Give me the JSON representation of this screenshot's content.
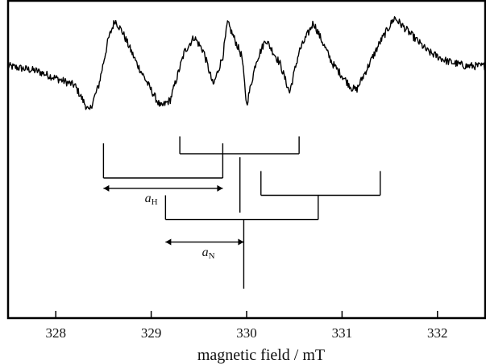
{
  "chart_data": {
    "type": "line",
    "title": "",
    "xlabel": "magnetic field / mT",
    "ylabel": "",
    "xlim": [
      327.5,
      332.5
    ],
    "xticks": [
      328,
      329,
      330,
      331,
      332
    ],
    "xtick_labels": [
      "328",
      "329",
      "330",
      "331",
      "332"
    ],
    "grid": false,
    "legend": "none",
    "series": [
      {
        "style": "noisy first-derivative EPR spectrum",
        "x": [
          327.5,
          327.8,
          328.0,
          328.2,
          328.35,
          328.45,
          328.55,
          328.62,
          328.7,
          328.85,
          329.0,
          329.1,
          329.2,
          329.35,
          329.45,
          329.55,
          329.65,
          329.75,
          329.8,
          329.95,
          330.0,
          330.1,
          330.2,
          330.35,
          330.45,
          330.55,
          330.7,
          330.9,
          331.1,
          331.15,
          331.25,
          331.4,
          331.55,
          331.7,
          331.9,
          332.1,
          332.3,
          332.5
        ],
        "y": [
          0.0,
          -0.1,
          -0.25,
          -0.4,
          -0.95,
          -0.4,
          0.55,
          0.95,
          0.7,
          0.05,
          -0.5,
          -0.85,
          -0.7,
          0.3,
          0.6,
          0.3,
          -0.4,
          0.2,
          0.9,
          0.2,
          -0.8,
          0.1,
          0.55,
          0.05,
          -0.55,
          0.3,
          0.9,
          0.05,
          -0.45,
          -0.5,
          -0.1,
          0.5,
          1.0,
          0.7,
          0.3,
          0.1,
          0.0,
          0.0
        ]
      }
    ],
    "stick_diagram": {
      "note": "hyperfine splitting pattern drawn below the spectrum",
      "segments": [
        {
          "x1": 328.5,
          "x2": 328.5,
          "level1": 1.0,
          "level2": 2.0
        },
        {
          "x1": 329.75,
          "x2": 329.75,
          "level1": 1.0,
          "level2": 2.0
        },
        {
          "x1": 328.5,
          "x2": 329.75,
          "level1": 2.0,
          "level2": 2.0
        },
        {
          "x1": 329.3,
          "x2": 329.3,
          "level1": 0.8,
          "level2": 1.3
        },
        {
          "x1": 330.55,
          "x2": 330.55,
          "level1": 0.8,
          "level2": 1.3
        },
        {
          "x1": 329.3,
          "x2": 330.55,
          "level1": 1.3,
          "level2": 1.3
        },
        {
          "x1": 330.15,
          "x2": 330.15,
          "level1": 1.8,
          "level2": 2.5
        },
        {
          "x1": 331.4,
          "x2": 331.4,
          "level1": 1.8,
          "level2": 2.5
        },
        {
          "x1": 330.15,
          "x2": 331.4,
          "level1": 2.5,
          "level2": 2.5
        },
        {
          "x1": 329.93,
          "x2": 329.93,
          "level1": 1.4,
          "level2": 3.0
        },
        {
          "x1": 329.15,
          "x2": 329.15,
          "level1": 2.5,
          "level2": 3.2
        },
        {
          "x1": 330.75,
          "x2": 330.75,
          "level1": 2.5,
          "level2": 3.2
        },
        {
          "x1": 329.15,
          "x2": 330.75,
          "level1": 3.2,
          "level2": 3.2
        },
        {
          "x1": 329.97,
          "x2": 329.97,
          "level1": 3.2,
          "level2": 5.2
        }
      ],
      "arrows": [
        {
          "x1": 328.5,
          "x2": 329.75,
          "level": 2.3,
          "label_main": "a",
          "label_sub": "H",
          "label_x": 329.0,
          "label_level": 2.7
        },
        {
          "x1": 329.15,
          "x2": 329.97,
          "level": 3.85,
          "label_main": "a",
          "label_sub": "N",
          "label_x": 329.6,
          "label_level": 4.25
        }
      ]
    }
  }
}
